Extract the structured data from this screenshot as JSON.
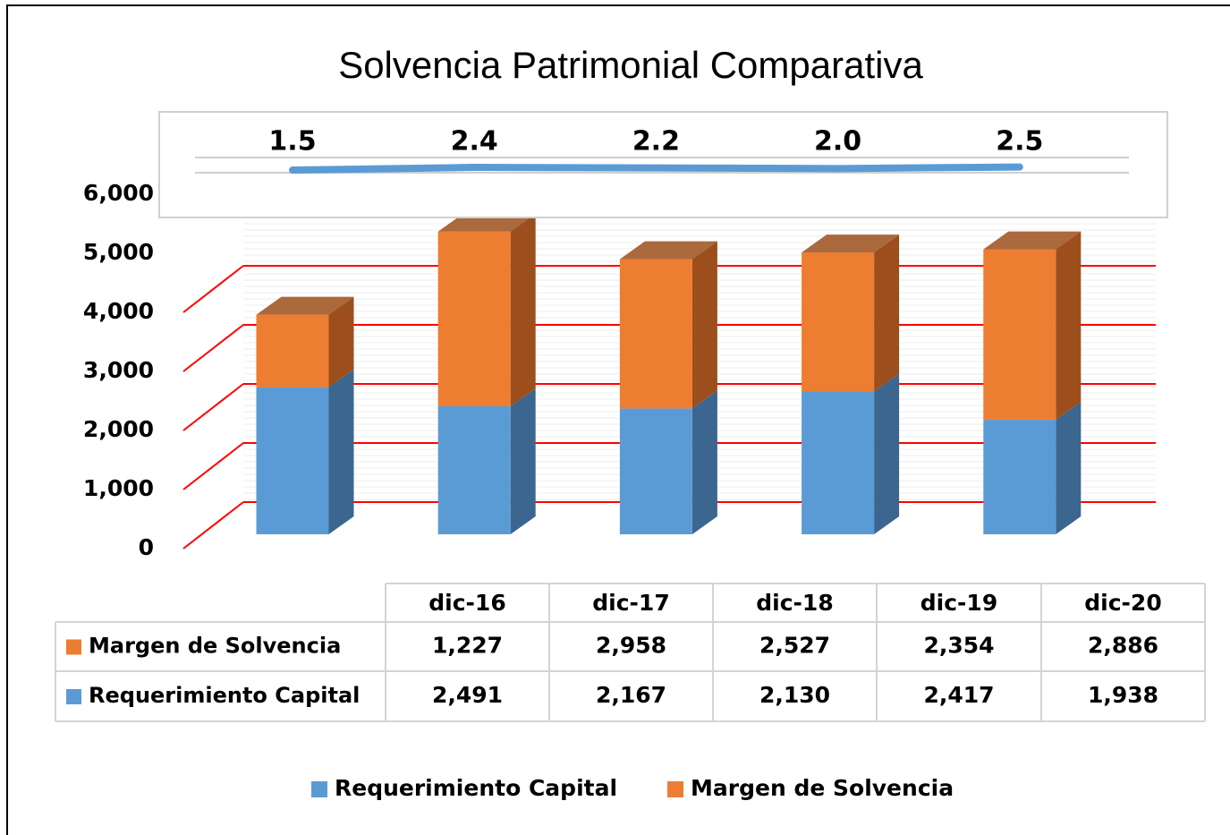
{
  "chart_data": [
    {
      "type": "line",
      "categories": [
        "dic-16",
        "dic-17",
        "dic-18",
        "dic-19",
        "dic-20"
      ],
      "values": [
        1.5,
        2.4,
        2.2,
        2.0,
        2.5
      ],
      "value_labels": [
        "1.5",
        "2.4",
        "2.2",
        "2.0",
        "2.5"
      ],
      "color": "#5b9bd5",
      "ylim": [
        0,
        30
      ]
    },
    {
      "type": "stacked_bar_3d",
      "title": "Solvencia Patrimonial Comparativa",
      "categories": [
        "dic-16",
        "dic-17",
        "dic-18",
        "dic-19",
        "dic-20"
      ],
      "series": [
        {
          "name": "Requerimiento Capital",
          "color": "#5b9bd5",
          "side_color": "#3b6690",
          "values": [
            2491,
            2167,
            2130,
            2417,
            1938
          ],
          "value_labels": [
            "2,491",
            "2,167",
            "2,130",
            "2,417",
            "1,938"
          ]
        },
        {
          "name": "Margen de Solvencia",
          "color": "#ed7d31",
          "side_color": "#9c4f1c",
          "values": [
            1227,
            2958,
            2527,
            2354,
            2886
          ],
          "value_labels": [
            "1,227",
            "2,958",
            "2,527",
            "2,354",
            "2,886"
          ]
        }
      ],
      "ylim": [
        0,
        6000
      ],
      "yticks": [
        0,
        {
          "value": 1000,
          "label": "1,000"
        },
        {
          "value": 2000,
          "label": "2,000"
        },
        {
          "value": 3000,
          "label": "3,000"
        },
        {
          "value": 4000,
          "label": "4,000"
        },
        {
          "value": 5000,
          "label": "5,000"
        },
        {
          "value": 6000,
          "label": "6,000"
        }
      ],
      "grid": true,
      "grid_color": "#ff0000",
      "legend": "bottom"
    }
  ]
}
